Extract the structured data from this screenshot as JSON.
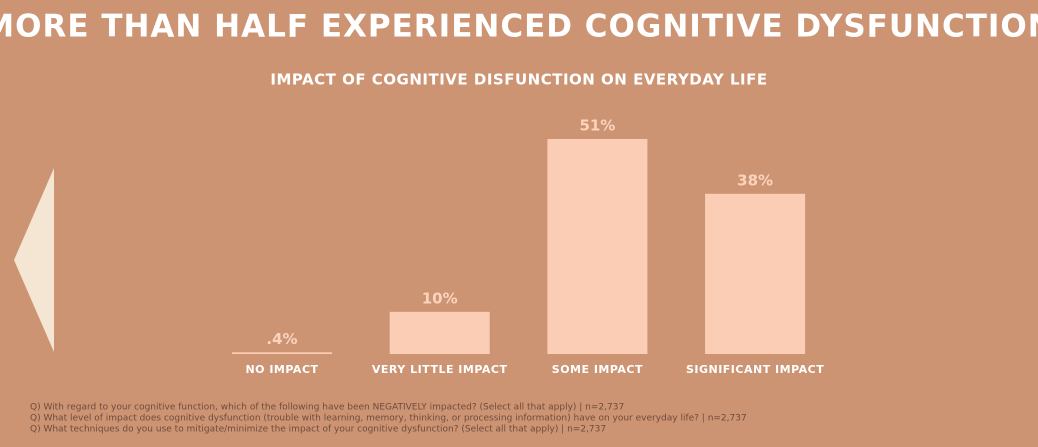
{
  "header": {
    "title": "MORE THAN HALF EXPERIENCED COGNITIVE DYSFUNCTION"
  },
  "chart_data": {
    "type": "bar",
    "title": "IMPACT OF COGNITIVE DISFUNCTION ON EVERYDAY LIFE",
    "categories": [
      "NO IMPACT",
      "VERY LITTLE IMPACT",
      "SOME IMPACT",
      "SIGNIFICANT IMPACT"
    ],
    "values": [
      0.4,
      10,
      51,
      38
    ],
    "value_labels": [
      ".4%",
      "10%",
      "51%",
      "38%"
    ],
    "color": "#fccdb5"
  },
  "footnotes": [
    "Q) With regard to your cognitive function, which of the following have been NEGATIVELY impacted? (Select all that apply) | n=2,737",
    "Q) What level of impact does cognitive dysfunction (trouble with learning, memory, thinking, or processing information) have on your everyday life? | n=2,737",
    "Q) What techniques do you use to mitigate/minimize the impact of your cognitive dysfunction? (Select all that apply) | n=2,737"
  ]
}
